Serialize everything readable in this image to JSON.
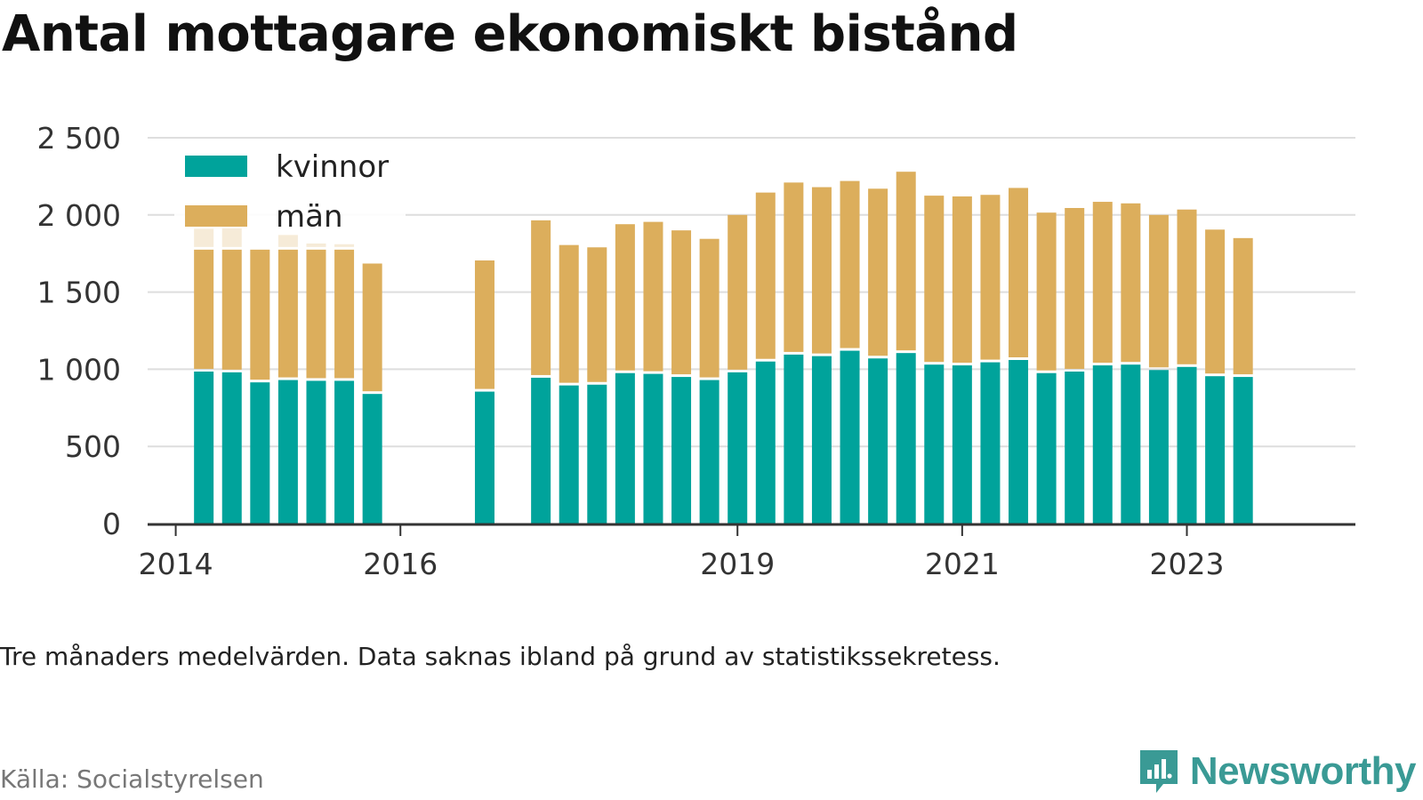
{
  "title": "Antal mottagare ekonomiskt bistånd",
  "note": "Tre månaders medelvärden. Data saknas ibland på grund av statistikssekretess.",
  "source": "Källa: Socialstyrelsen",
  "brand": {
    "name": "Newsworthy",
    "icon": "newsworthy-logo-icon",
    "color": "#3a9a95"
  },
  "chart_data": {
    "type": "bar",
    "stacked": true,
    "legend_position": "top-left",
    "grid": true,
    "ylim": [
      0,
      2500
    ],
    "yticks": [
      {
        "value": 0,
        "label": "0"
      },
      {
        "value": 500,
        "label": "500"
      },
      {
        "value": 1000,
        "label": "1 000"
      },
      {
        "value": 1500,
        "label": "1 500"
      },
      {
        "value": 2000,
        "label": "2 000"
      },
      {
        "value": 2500,
        "label": "2 500"
      }
    ],
    "xlim": [
      2013.75,
      2024.5
    ],
    "xticks": [
      {
        "value": 2014,
        "label": "2014"
      },
      {
        "value": 2016,
        "label": "2016"
      },
      {
        "value": 2019,
        "label": "2019"
      },
      {
        "value": 2021,
        "label": "2021"
      },
      {
        "value": 2023,
        "label": "2023"
      }
    ],
    "series_colors": {
      "kvinnor": "#00a39b",
      "män": "#dcae5c",
      "män_faded": "#f6ebd8"
    },
    "series": [
      {
        "name": "kvinnor",
        "key": "kvinnor"
      },
      {
        "name": "män",
        "key": "man"
      }
    ],
    "x": [
      2014.25,
      2014.5,
      2014.75,
      2015.0,
      2015.25,
      2015.5,
      2015.75,
      2016.75,
      2017.25,
      2017.5,
      2017.75,
      2018.0,
      2018.25,
      2018.5,
      2018.75,
      2019.0,
      2019.25,
      2019.5,
      2019.75,
      2020.0,
      2020.25,
      2020.5,
      2020.75,
      2021.0,
      2021.25,
      2021.5,
      2021.75,
      2022.0,
      2022.25,
      2022.5,
      2022.75,
      2023.0,
      2023.25,
      2023.5
    ],
    "kvinnor": [
      985,
      980,
      915,
      930,
      925,
      925,
      840,
      855,
      945,
      895,
      900,
      975,
      970,
      950,
      930,
      980,
      1050,
      1095,
      1085,
      1120,
      1070,
      1105,
      1030,
      1025,
      1045,
      1060,
      975,
      985,
      1025,
      1030,
      995,
      1015,
      955,
      950
    ],
    "man": [
      790,
      795,
      860,
      845,
      850,
      850,
      845,
      850,
      1020,
      910,
      890,
      965,
      985,
      950,
      915,
      1020,
      1095,
      1115,
      1095,
      1100,
      1100,
      1175,
      1095,
      1095,
      1085,
      1115,
      1040,
      1060,
      1060,
      1045,
      1005,
      1020,
      950,
      900
    ],
    "man_faded_extra": [
      135,
      165,
      0,
      95,
      40,
      35,
      0,
      0,
      0,
      0,
      0,
      0,
      0,
      0,
      0,
      0,
      0,
      0,
      0,
      0,
      0,
      0,
      0,
      0,
      0,
      0,
      0,
      0,
      0,
      0,
      0,
      0,
      0,
      0
    ]
  }
}
